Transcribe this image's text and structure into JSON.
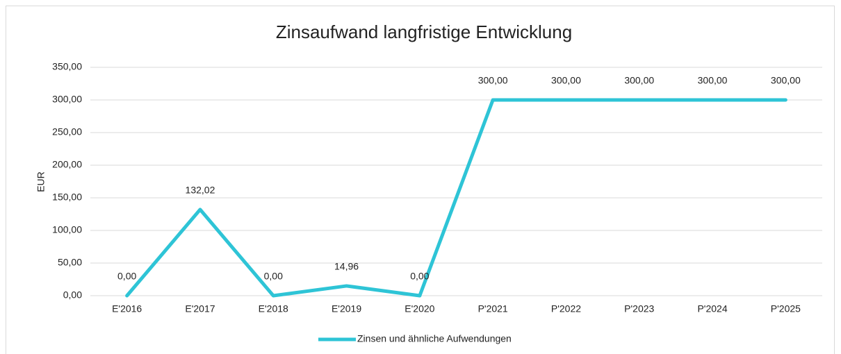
{
  "chart_data": {
    "type": "line",
    "title": "Zinsaufwand langfristige Entwicklung",
    "y_label": "EUR",
    "categories": [
      "E'2016",
      "E'2017",
      "E'2018",
      "E'2019",
      "E'2020",
      "P'2021",
      "P'2022",
      "P'2023",
      "P'2024",
      "P'2025"
    ],
    "series": [
      {
        "name": "Zinsen und ähnliche Aufwendungen",
        "color": "#2ec4d6",
        "values": [
          0,
          132.02,
          0,
          14.96,
          0,
          300,
          300,
          300,
          300,
          300
        ],
        "value_labels": [
          "0,00",
          "132,02",
          "0,00",
          "14,96",
          "0,00",
          "300,00",
          "300,00",
          "300,00",
          "300,00",
          "300,00"
        ]
      }
    ],
    "ylim": [
      0,
      350
    ],
    "yticks": [
      {
        "value": 0,
        "label": "0,00"
      },
      {
        "value": 50,
        "label": "50,00"
      },
      {
        "value": 100,
        "label": "100,00"
      },
      {
        "value": 150,
        "label": "150,00"
      },
      {
        "value": 200,
        "label": "200,00"
      },
      {
        "value": 250,
        "label": "250,00"
      },
      {
        "value": 300,
        "label": "300,00"
      },
      {
        "value": 350,
        "label": "350,00"
      }
    ],
    "grid": true,
    "legend": "bottom"
  }
}
